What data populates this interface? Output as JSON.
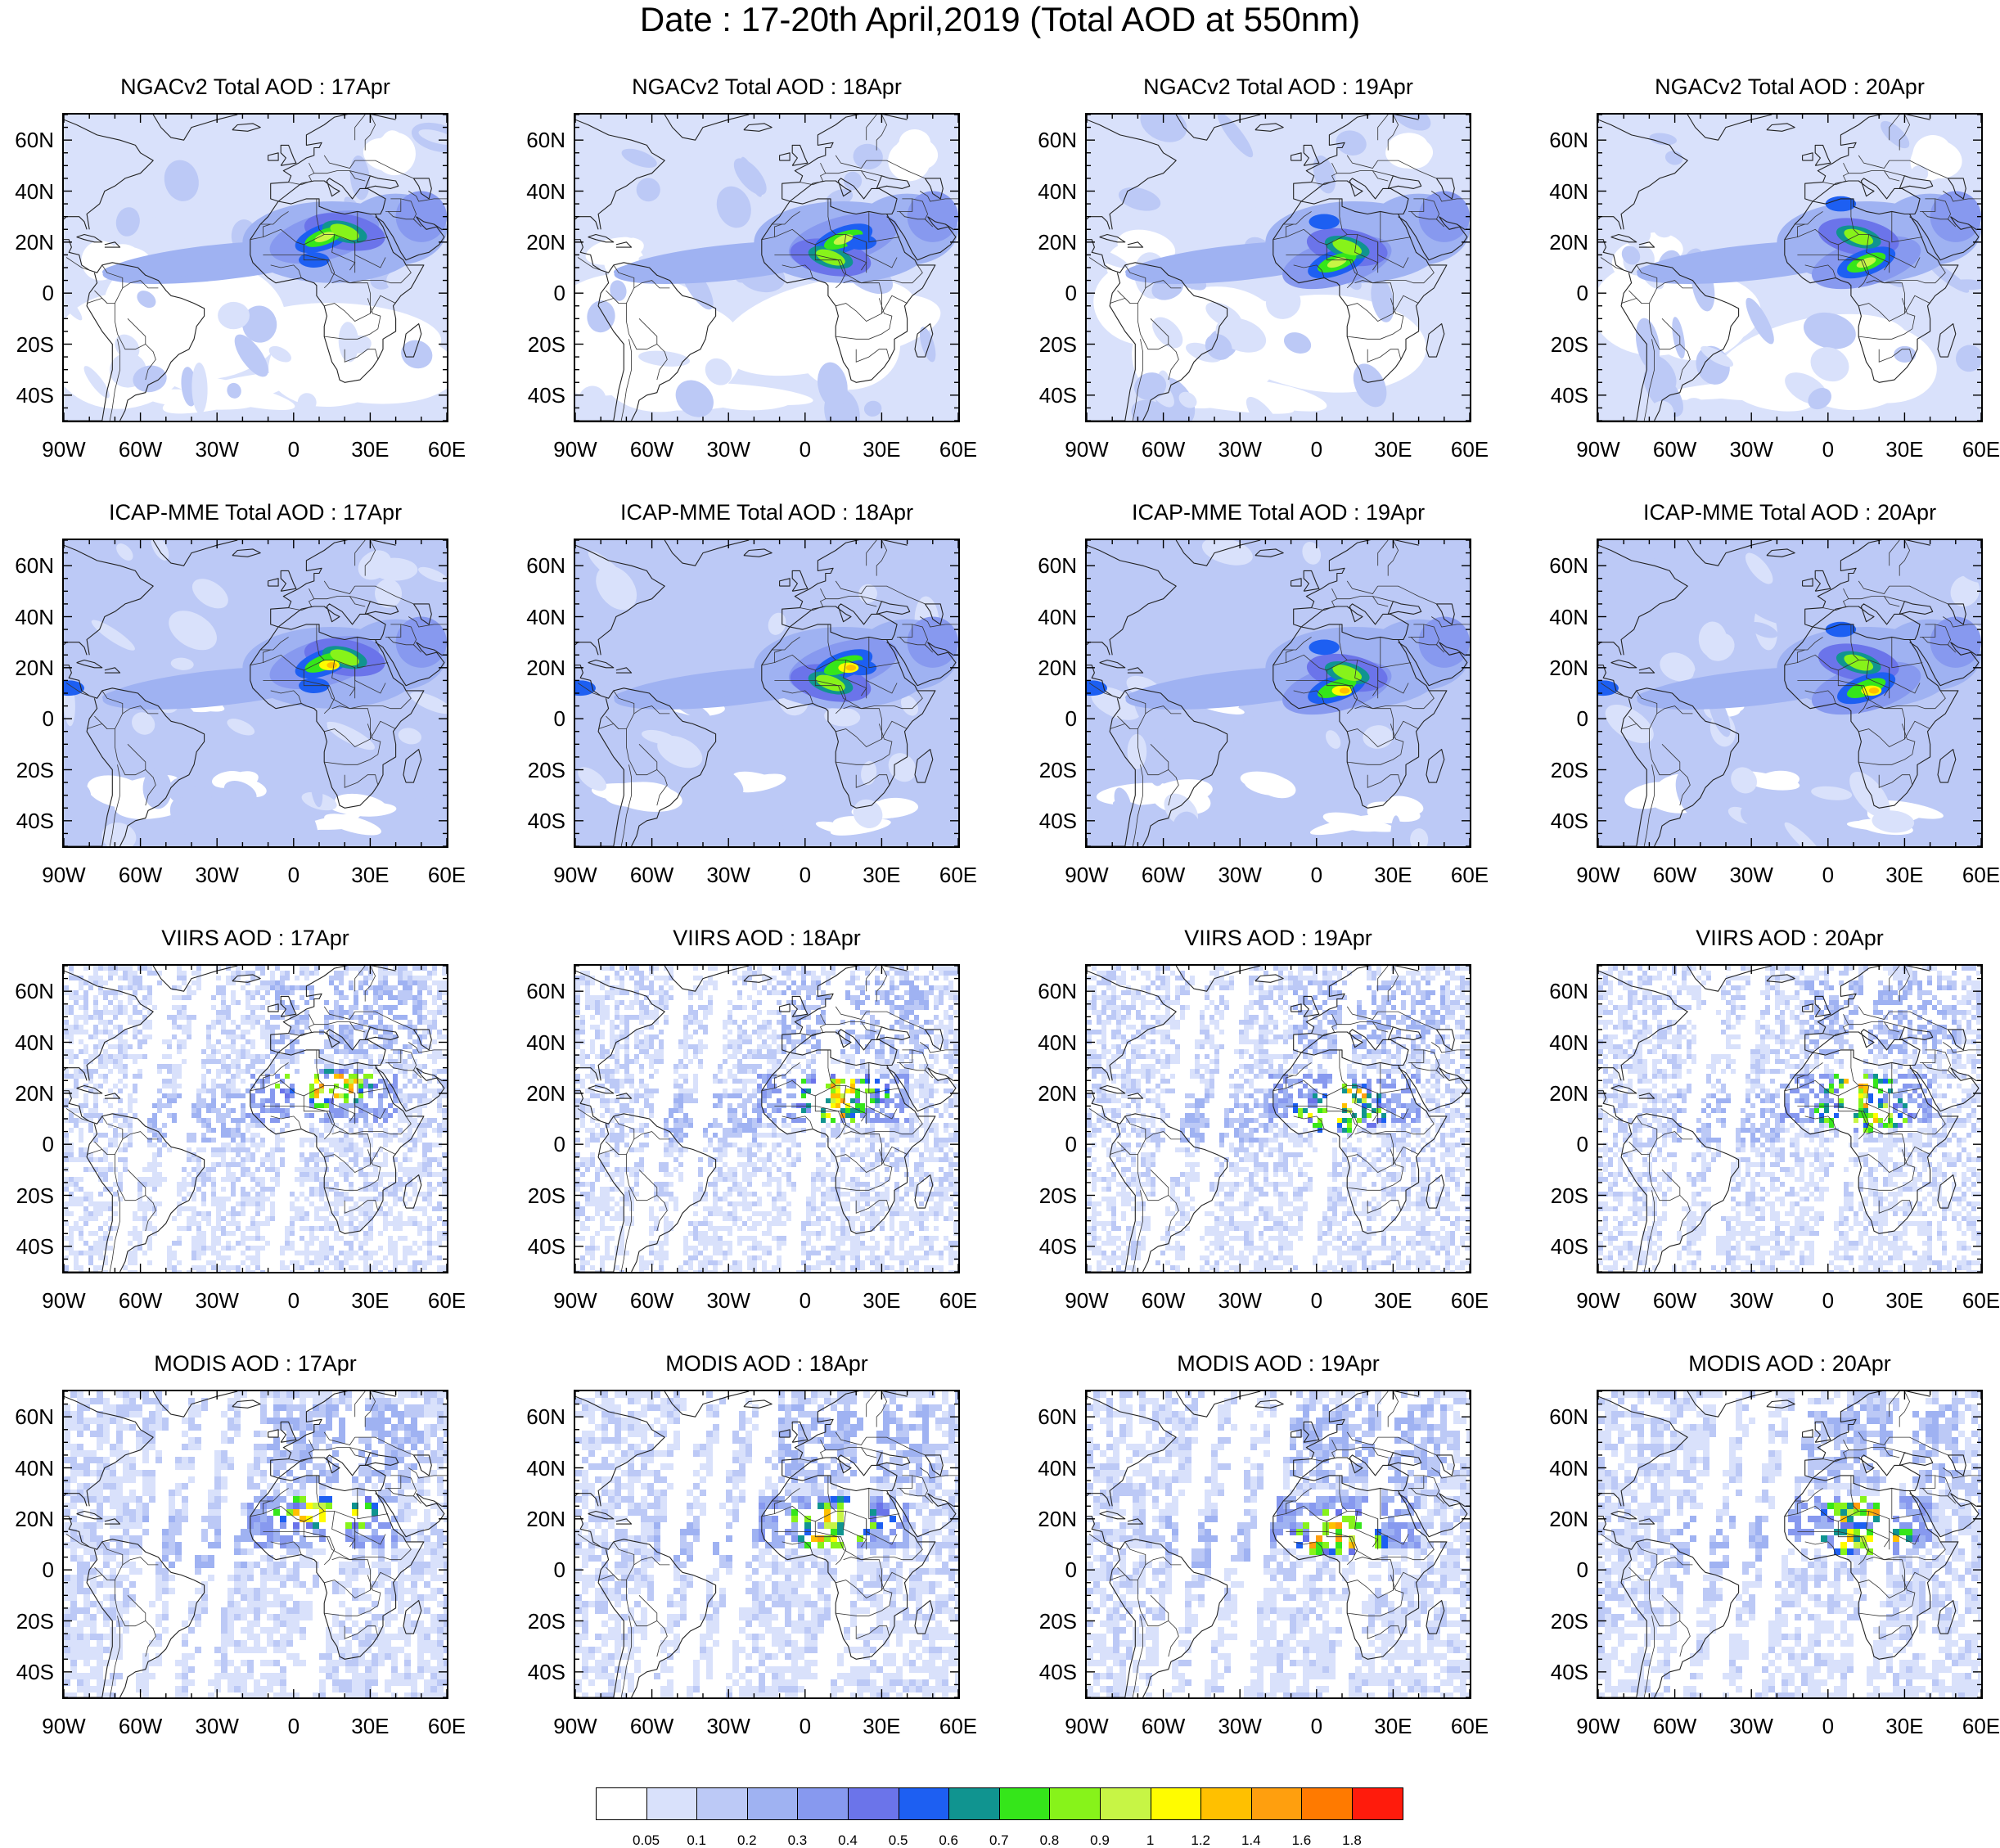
{
  "title": "Date : 17-20th April,2019 (Total AOD at 550nm)",
  "lat_labels": [
    "60N",
    "40N",
    "20N",
    "0",
    "20S",
    "40S"
  ],
  "lon_labels": [
    "90W",
    "60W",
    "30W",
    "0",
    "30E",
    "60E"
  ],
  "map_extent": {
    "lon": [
      -90,
      60
    ],
    "lat": [
      -50,
      70
    ]
  },
  "rows": [
    {
      "product": "NGACv2",
      "kind": "model",
      "titles": [
        "NGACv2 Total AOD : 17Apr",
        "NGACv2 Total AOD : 18Apr",
        "NGACv2 Total AOD : 19Apr",
        "NGACv2 Total AOD : 20Apr"
      ]
    },
    {
      "product": "ICAP-MME",
      "kind": "model",
      "titles": [
        "ICAP-MME Total AOD : 17Apr",
        "ICAP-MME Total AOD : 18Apr",
        "ICAP-MME Total AOD : 19Apr",
        "ICAP-MME Total AOD : 20Apr"
      ]
    },
    {
      "product": "VIIRS",
      "kind": "satellite",
      "titles": [
        "VIIRS AOD : 17Apr",
        "VIIRS AOD : 18Apr",
        "VIIRS AOD : 19Apr",
        "VIIRS AOD : 20Apr"
      ]
    },
    {
      "product": "MODIS",
      "kind": "satellite",
      "titles": [
        "MODIS AOD : 17Apr",
        "MODIS AOD : 18Apr",
        "MODIS AOD : 19Apr",
        "MODIS AOD : 20Apr"
      ]
    }
  ],
  "colorbar": {
    "colors": [
      "#ffffff",
      "#d9e1fb",
      "#bcc9f6",
      "#9fb2f2",
      "#8799ef",
      "#6b74ea",
      "#1d5ff2",
      "#109490",
      "#35e61a",
      "#87f31a",
      "#c7f545",
      "#fffc00",
      "#ffc000",
      "#ff9f0e",
      "#ff7a00",
      "#ff1b0c"
    ],
    "labels": [
      "0.05",
      "0.1",
      "0.2",
      "0.3",
      "0.4",
      "0.5",
      "0.6",
      "0.7",
      "0.8",
      "0.9",
      "1",
      "1.2",
      "1.4",
      "1.6",
      "1.8"
    ]
  }
}
